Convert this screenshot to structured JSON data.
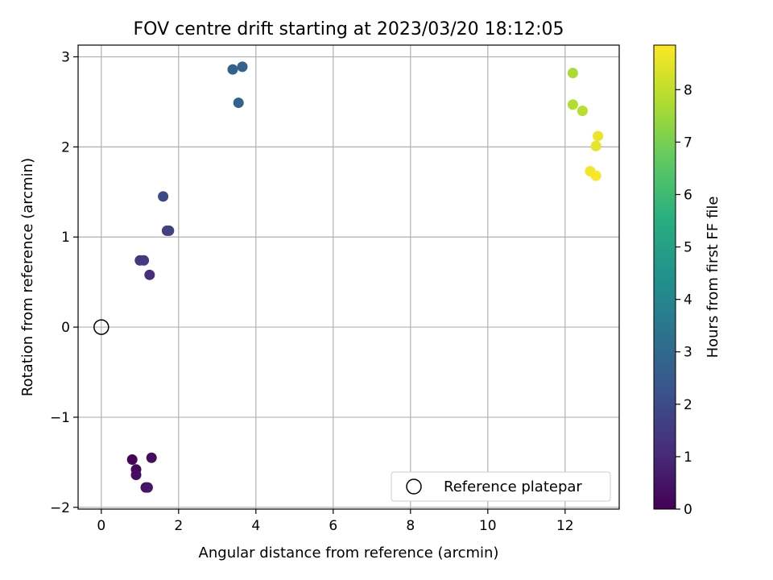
{
  "chart_data": {
    "type": "scatter",
    "title": "FOV centre drift starting at 2023/03/20 18:12:05",
    "xlabel": "Angular distance from reference (arcmin)",
    "ylabel": "Rotation from reference (arcmin)",
    "xlim": [
      -0.6,
      13.4
    ],
    "ylim": [
      -2.02,
      3.13
    ],
    "xticks": [
      0,
      2,
      4,
      6,
      8,
      10,
      12
    ],
    "yticks": [
      -2,
      -1,
      0,
      1,
      2,
      3
    ],
    "grid": true,
    "legend_position": "lower-right",
    "colormap": "viridis",
    "series": [
      {
        "points": [
          {
            "x": 0.8,
            "y": -1.47,
            "hours": 0.1
          },
          {
            "x": 0.9,
            "y": -1.58,
            "hours": 0.2
          },
          {
            "x": 0.9,
            "y": -1.64,
            "hours": 0.3
          },
          {
            "x": 1.3,
            "y": -1.45,
            "hours": 0.3
          },
          {
            "x": 1.15,
            "y": -1.78,
            "hours": 0.4
          },
          {
            "x": 1.2,
            "y": -1.78,
            "hours": 0.5
          },
          {
            "x": 1.25,
            "y": 0.58,
            "hours": 1.2
          },
          {
            "x": 1.0,
            "y": 0.74,
            "hours": 1.4
          },
          {
            "x": 1.1,
            "y": 0.74,
            "hours": 1.5
          },
          {
            "x": 1.7,
            "y": 1.07,
            "hours": 1.6
          },
          {
            "x": 1.75,
            "y": 1.07,
            "hours": 1.7
          },
          {
            "x": 1.6,
            "y": 1.45,
            "hours": 1.9
          },
          {
            "x": 3.4,
            "y": 2.86,
            "hours": 2.7
          },
          {
            "x": 3.65,
            "y": 2.89,
            "hours": 2.8
          },
          {
            "x": 3.55,
            "y": 2.49,
            "hours": 2.8
          },
          {
            "x": 12.2,
            "y": 2.82,
            "hours": 7.7
          },
          {
            "x": 12.2,
            "y": 2.47,
            "hours": 7.8
          },
          {
            "x": 12.45,
            "y": 2.4,
            "hours": 7.9
          },
          {
            "x": 12.85,
            "y": 2.12,
            "hours": 8.6
          },
          {
            "x": 12.8,
            "y": 2.01,
            "hours": 8.5
          },
          {
            "x": 12.65,
            "y": 1.73,
            "hours": 8.7
          },
          {
            "x": 12.8,
            "y": 1.68,
            "hours": 8.8
          }
        ]
      }
    ],
    "reference_point": {
      "label": "Reference platepar",
      "x": 0,
      "y": 0
    },
    "colorbar": {
      "label": "Hours from first FF file",
      "range": [
        0,
        8.85
      ],
      "ticks": [
        0,
        1,
        2,
        3,
        4,
        5,
        6,
        7,
        8
      ]
    }
  }
}
